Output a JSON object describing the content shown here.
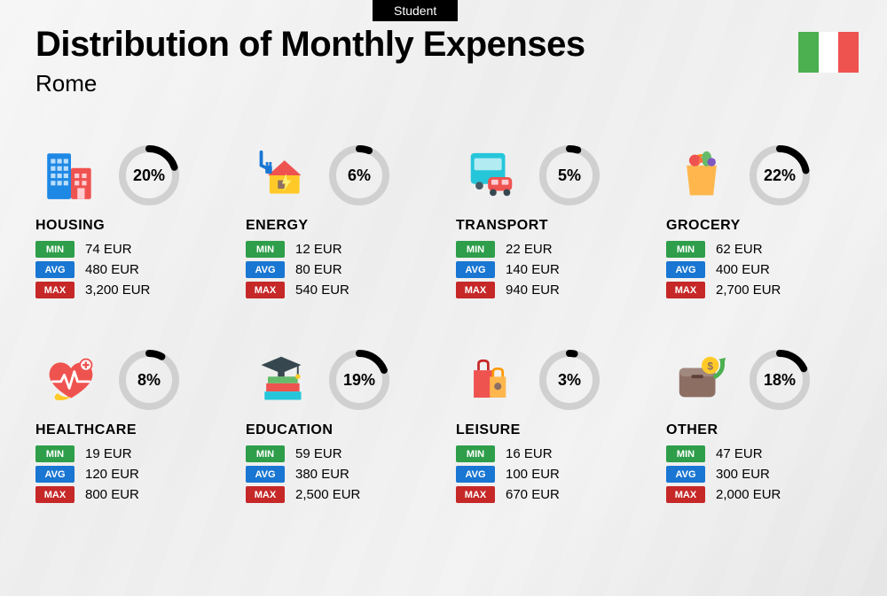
{
  "badge": "Student",
  "title": "Distribution of Monthly Expenses",
  "city": "Rome",
  "flag_colors": [
    "#4caf50",
    "#ffffff",
    "#ef5350"
  ],
  "currency": "EUR",
  "labels": {
    "min": "MIN",
    "avg": "AVG",
    "max": "MAX"
  },
  "tag_colors": {
    "min": "#2e9e4a",
    "avg": "#1976d2",
    "max": "#c62828"
  },
  "donut_style": {
    "track_color": "#d0d0d0",
    "arc_color": "#000000",
    "track_width": 8,
    "size": 76
  },
  "categories": [
    {
      "key": "housing",
      "name": "HOUSING",
      "pct": 20,
      "min": "74",
      "avg": "480",
      "max": "3,200"
    },
    {
      "key": "energy",
      "name": "ENERGY",
      "pct": 6,
      "min": "12",
      "avg": "80",
      "max": "540"
    },
    {
      "key": "transport",
      "name": "TRANSPORT",
      "pct": 5,
      "min": "22",
      "avg": "140",
      "max": "940"
    },
    {
      "key": "grocery",
      "name": "GROCERY",
      "pct": 22,
      "min": "62",
      "avg": "400",
      "max": "2,700"
    },
    {
      "key": "healthcare",
      "name": "HEALTHCARE",
      "pct": 8,
      "min": "19",
      "avg": "120",
      "max": "800"
    },
    {
      "key": "education",
      "name": "EDUCATION",
      "pct": 19,
      "min": "59",
      "avg": "380",
      "max": "2,500"
    },
    {
      "key": "leisure",
      "name": "LEISURE",
      "pct": 3,
      "min": "16",
      "avg": "100",
      "max": "670"
    },
    {
      "key": "other",
      "name": "OTHER",
      "pct": 18,
      "min": "47",
      "avg": "300",
      "max": "2,000"
    }
  ]
}
